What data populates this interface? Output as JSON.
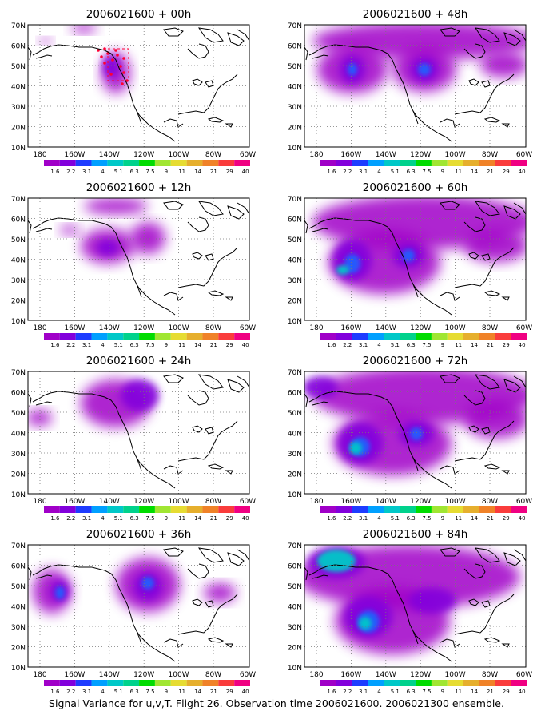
{
  "figure": {
    "caption": "Signal Variance for u,v,T. Flight 26. Observation time 2006021600. 2006021300 ensemble."
  },
  "axes": {
    "lat_ticks": [
      "70N",
      "60N",
      "50N",
      "40N",
      "30N",
      "20N",
      "10N"
    ],
    "lon_ticks": [
      "180",
      "160W",
      "140W",
      "120W",
      "100W",
      "80W",
      "60W"
    ],
    "lat_range": [
      10,
      70
    ],
    "lon_range": [
      -190,
      -60
    ],
    "grid": "dotted"
  },
  "colorbar": {
    "labels": [
      "1.6",
      "2.2",
      "3.1",
      "4",
      "5.1",
      "6.3",
      "7.5",
      "9",
      "11",
      "14",
      "21",
      "29",
      "40"
    ],
    "colors": [
      "#a000c8",
      "#8200dc",
      "#1e3cff",
      "#00a0ff",
      "#00c8c8",
      "#00d28c",
      "#00dc00",
      "#a0e632",
      "#e6dc32",
      "#e6af2d",
      "#f08228",
      "#fa3c3c",
      "#f00082"
    ]
  },
  "panels": [
    {
      "title": "2006021600 + 00h",
      "lead_hours": 0
    },
    {
      "title": "2006021600 + 48h",
      "lead_hours": 48
    },
    {
      "title": "2006021600 + 12h",
      "lead_hours": 12
    },
    {
      "title": "2006021600 + 60h",
      "lead_hours": 60
    },
    {
      "title": "2006021600 + 24h",
      "lead_hours": 24
    },
    {
      "title": "2006021600 + 72h",
      "lead_hours": 72
    },
    {
      "title": "2006021600 + 36h",
      "lead_hours": 36
    },
    {
      "title": "2006021600 + 84h",
      "lead_hours": 84
    }
  ]
}
